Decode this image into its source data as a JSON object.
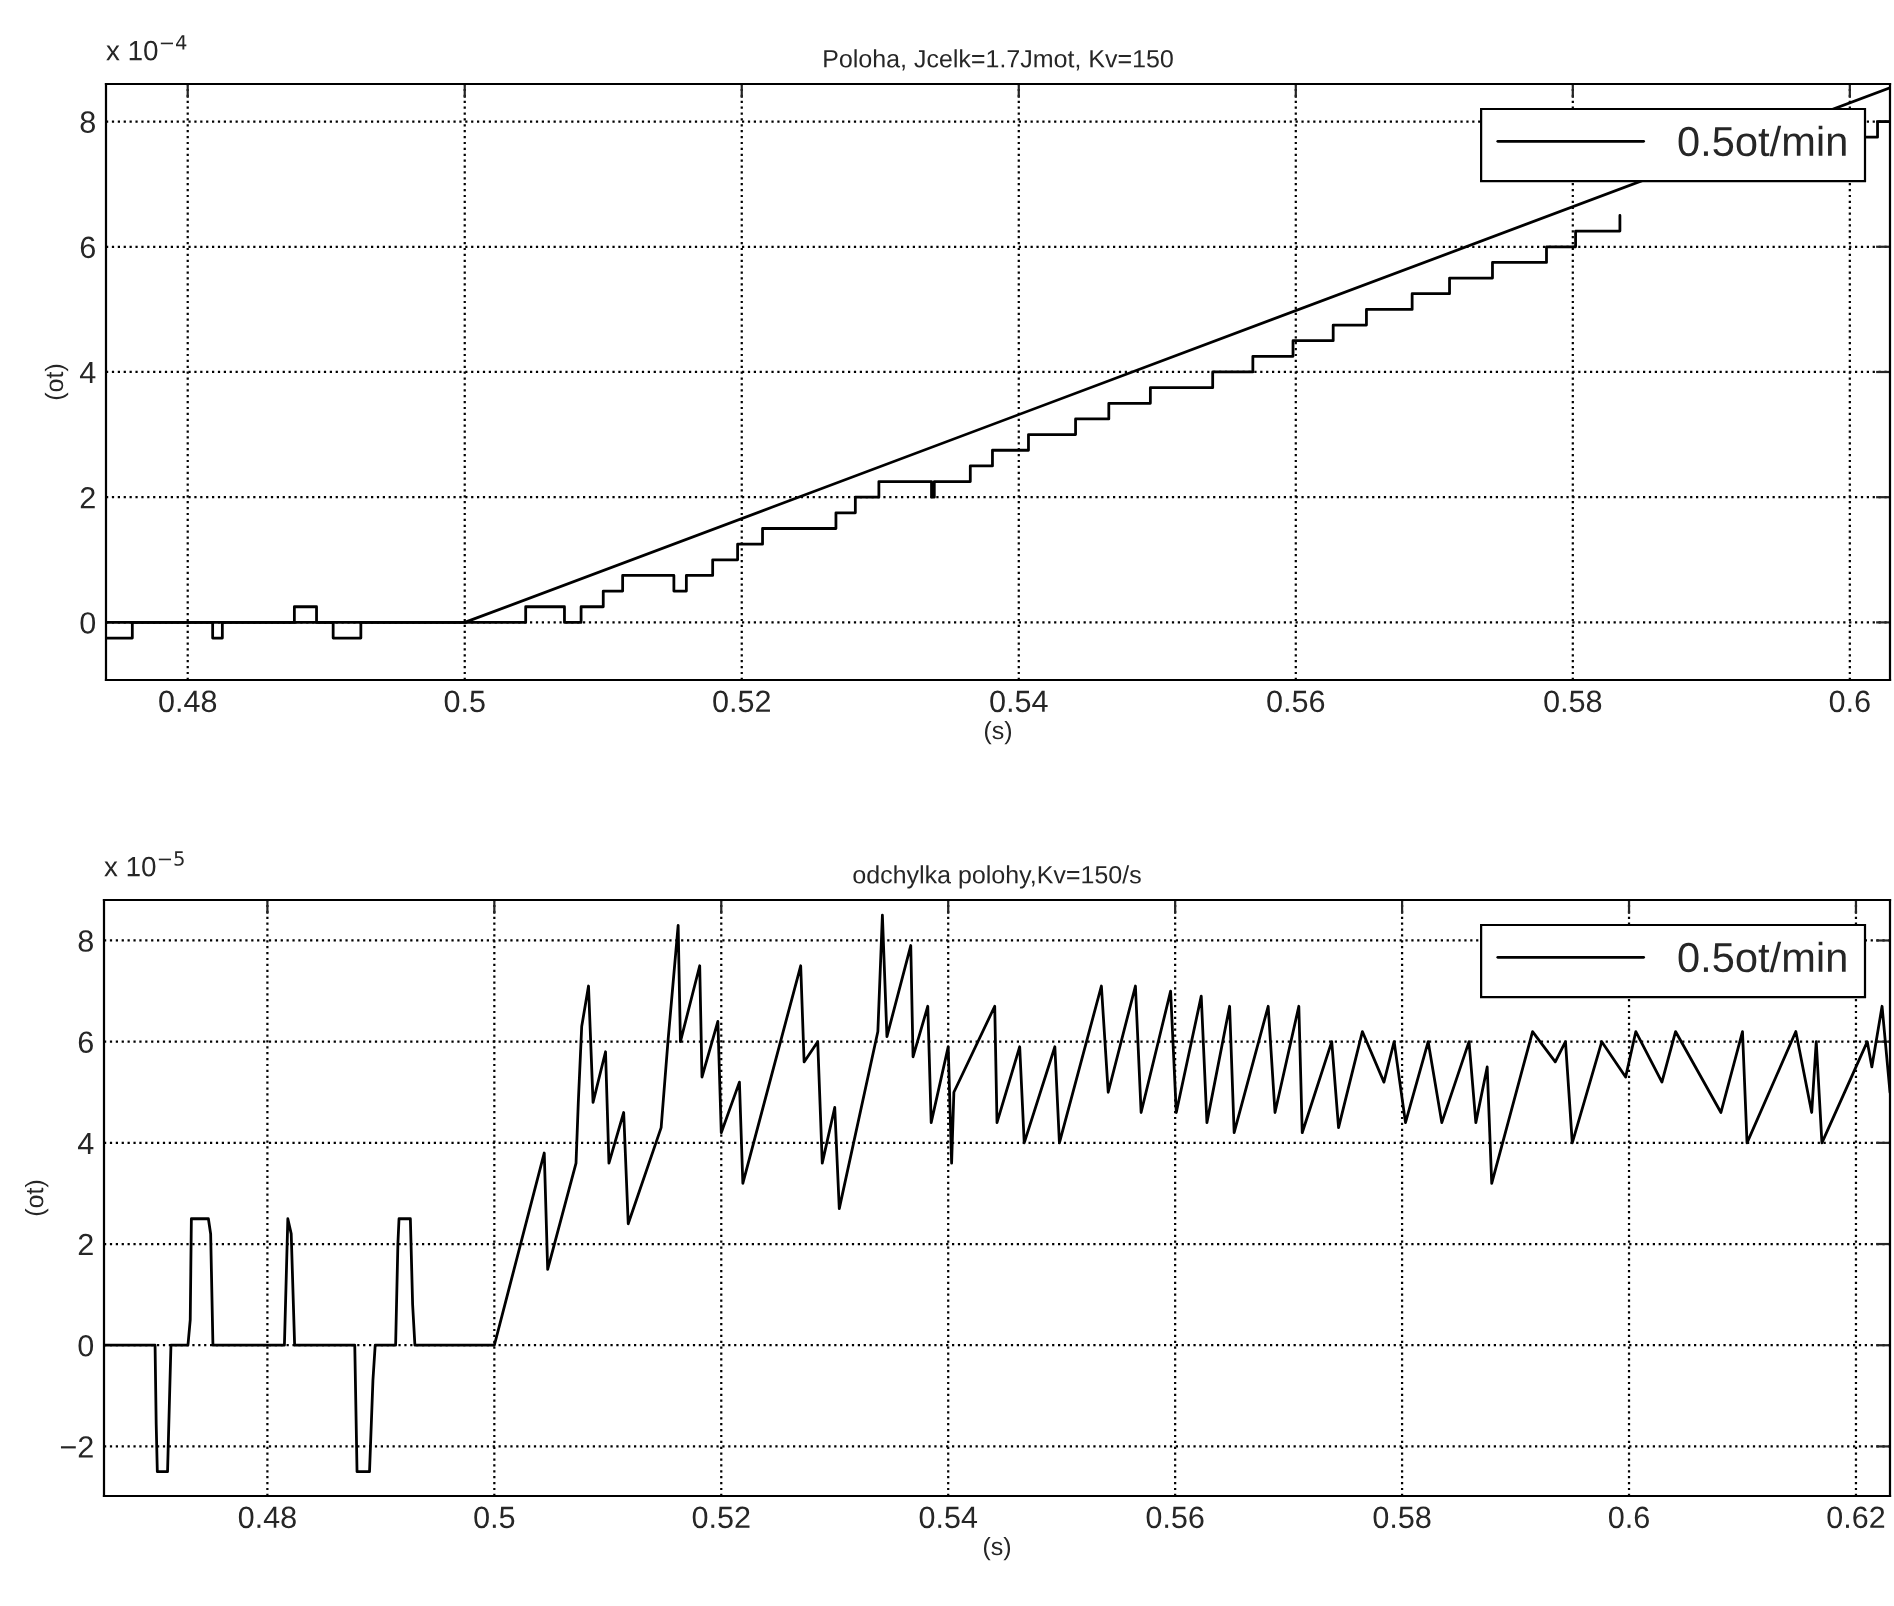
{
  "chart_data": [
    {
      "type": "line",
      "title": "Poloha, Jcelk=1.7Jmot, Kv=150",
      "xlabel": "(s)",
      "ylabel": "(ot)",
      "annotations": [
        "x 10$^{−4}$"
      ],
      "xlim": [
        0.4741,
        0.6029
      ],
      "ylim": [
        -0.92,
        8.6
      ],
      "xticks": [
        0.48,
        0.5,
        0.52,
        0.54,
        0.56,
        0.58,
        0.6
      ],
      "yticks": [
        0,
        2,
        4,
        6,
        8
      ],
      "grid": true,
      "legend": "top right",
      "line_style": "solid",
      "series": [
        {
          "name": "0.5ot/min",
          "color": "#000000",
          "x": [
            0.4741,
            0.5,
            0.6029
          ],
          "values": [
            0,
            0,
            8.54
          ]
        },
        {
          "color": "#000000",
          "x": [
            0.4741,
            0.476,
            0.476,
            0.4818,
            0.4818,
            0.4825,
            0.4825,
            0.4877,
            0.4877,
            0.4893,
            0.4893,
            0.4905,
            0.4905,
            0.4925,
            0.4925,
            0.5044,
            0.5044,
            0.5072,
            0.5072,
            0.5084,
            0.5084,
            0.51,
            0.51,
            0.5114,
            0.5114,
            0.5151,
            0.5151,
            0.516,
            0.516,
            0.5179,
            0.5179,
            0.5197,
            0.5197,
            0.5215,
            0.5215,
            0.5268,
            0.5268,
            0.5282,
            0.5282,
            0.5299,
            0.5299,
            0.5337,
            0.5337,
            0.5339,
            0.5339,
            0.5365,
            0.5365,
            0.5381,
            0.5381,
            0.5407,
            0.5407,
            0.5441,
            0.5441,
            0.5465,
            0.5465,
            0.5495,
            0.5495,
            0.554,
            0.554,
            0.5569,
            0.5569,
            0.5598,
            0.5598,
            0.5627,
            0.5627,
            0.5651,
            0.5651,
            0.5684,
            0.5684,
            0.5711,
            0.5711,
            0.5742,
            0.5742,
            0.5781,
            0.5781,
            0.5802,
            0.5802,
            0.5834,
            0.5834,
            0.59,
            0.6012,
            0.602,
            0.602,
            0.6029
          ],
          "values": [
            -0.25,
            -0.25,
            0,
            0,
            -0.25,
            -0.25,
            0,
            0,
            0.25,
            0.25,
            0,
            0,
            -0.25,
            -0.25,
            0,
            0,
            0.25,
            0.25,
            0,
            0,
            0.25,
            0.25,
            0.5,
            0.5,
            0.75,
            0.75,
            0.5,
            0.5,
            0.75,
            0.75,
            1.0,
            1.0,
            1.25,
            1.25,
            1.5,
            1.5,
            1.75,
            1.75,
            2.0,
            2.0,
            2.25,
            2.25,
            2.0,
            2.0,
            2.25,
            2.25,
            2.5,
            2.5,
            2.75,
            2.75,
            3.0,
            3.0,
            3.25,
            3.25,
            3.5,
            3.5,
            3.75,
            3.75,
            4.0,
            4.0,
            4.25,
            4.25,
            4.5,
            4.5,
            4.75,
            4.75,
            5.0,
            5.0,
            5.25,
            5.25,
            5.5,
            5.5,
            5.75,
            5.75,
            6.0,
            6.0,
            6.25,
            6.25,
            6.5,
            null,
            7.75,
            7.75,
            8.0,
            8.0
          ]
        }
      ]
    },
    {
      "type": "line",
      "title": "odchylka polohy,Kv=150/s",
      "xlabel": "(s)",
      "ylabel": "(ot)",
      "annotations": [
        "x 10$^{−5}$"
      ],
      "xlim": [
        0.4656,
        0.623
      ],
      "ylim": [
        -2.98,
        8.8
      ],
      "xticks": [
        0.48,
        0.5,
        0.52,
        0.54,
        0.56,
        0.58,
        0.6,
        0.62
      ],
      "yticks": [
        {
          "value": -2,
          "label": "−2"
        },
        0,
        2,
        4,
        6,
        8
      ],
      "grid": true,
      "legend": "top right",
      "line_style": "solid",
      "series": [
        {
          "name": "0.5ot/min",
          "color": "#000000",
          "x": [
            0.4656,
            0.4701,
            0.4702,
            0.4703,
            0.4712,
            0.4715,
            0.473,
            0.4732,
            0.4733,
            0.4748,
            0.475,
            0.4752,
            0.4815,
            0.4818,
            0.4821,
            0.4824,
            0.4877,
            0.4879,
            0.489,
            0.4893,
            0.4895,
            0.4913,
            0.4915,
            0.4916,
            0.4926,
            0.4928,
            0.493,
            0.5,
            0.5044,
            0.5047,
            0.5072,
            0.5074,
            0.5077,
            0.5083,
            0.5087,
            0.5098,
            0.5101,
            0.5114,
            0.5118,
            0.5147,
            0.5153,
            0.5162,
            0.5164,
            0.5181,
            0.5183,
            0.5197,
            0.52,
            0.5216,
            0.5219,
            0.527,
            0.5273,
            0.5285,
            0.5289,
            0.53,
            0.5304,
            0.5338,
            0.5342,
            0.5346,
            0.5367,
            0.5369,
            0.5382,
            0.5385,
            0.54,
            0.5403,
            0.5405,
            0.5441,
            0.5443,
            0.5463,
            0.5467,
            0.5494,
            0.5498,
            0.5535,
            0.5541,
            0.5565,
            0.557,
            0.5596,
            0.5601,
            0.5623,
            0.5628,
            0.5648,
            0.5652,
            0.5682,
            0.5688,
            0.5709,
            0.5712,
            0.5738,
            0.5744,
            0.5765,
            0.5784,
            0.5793,
            0.5803,
            0.5823,
            0.5835,
            0.5859,
            0.5865,
            0.5875,
            0.5879,
            0.5915,
            0.5935,
            0.5944,
            0.595,
            0.5976,
            0.5997,
            0.6006,
            0.6029,
            0.6041,
            0.6081,
            0.61,
            0.6104,
            0.6147,
            0.6161,
            0.6165,
            0.617,
            0.621,
            0.6214,
            0.6223,
            0.623
          ],
          "values": [
            0,
            0,
            -1.56,
            -2.5,
            -2.5,
            0,
            0,
            0.5,
            2.5,
            2.5,
            2.2,
            0,
            0,
            2.5,
            2.2,
            0,
            0,
            -2.5,
            -2.5,
            -0.7,
            0,
            0,
            2.0,
            2.5,
            2.5,
            0.8,
            0,
            0,
            3.8,
            1.5,
            3.6,
            4.8,
            6.3,
            7.1,
            4.8,
            5.8,
            3.6,
            4.6,
            2.4,
            4.3,
            6.0,
            8.3,
            6.0,
            7.5,
            5.3,
            6.4,
            4.2,
            5.2,
            3.2,
            7.5,
            5.6,
            6.0,
            3.6,
            4.7,
            2.7,
            6.2,
            8.5,
            6.1,
            7.9,
            5.7,
            6.7,
            4.4,
            5.9,
            3.6,
            5.0,
            6.7,
            4.4,
            5.9,
            4.0,
            5.9,
            4.0,
            7.1,
            5.0,
            7.1,
            4.6,
            7.0,
            4.6,
            6.9,
            4.4,
            6.7,
            4.2,
            6.7,
            4.6,
            6.7,
            4.2,
            6.0,
            4.3,
            6.2,
            5.2,
            6.0,
            4.4,
            6.0,
            4.4,
            6.0,
            4.4,
            5.5,
            3.2,
            6.2,
            5.6,
            6.0,
            4.0,
            6.0,
            5.3,
            6.2,
            5.2,
            6.2,
            4.6,
            6.2,
            4.0,
            6.2,
            4.6,
            6.0,
            4.0,
            6.0,
            5.5,
            6.7,
            5.0
          ]
        }
      ]
    }
  ]
}
